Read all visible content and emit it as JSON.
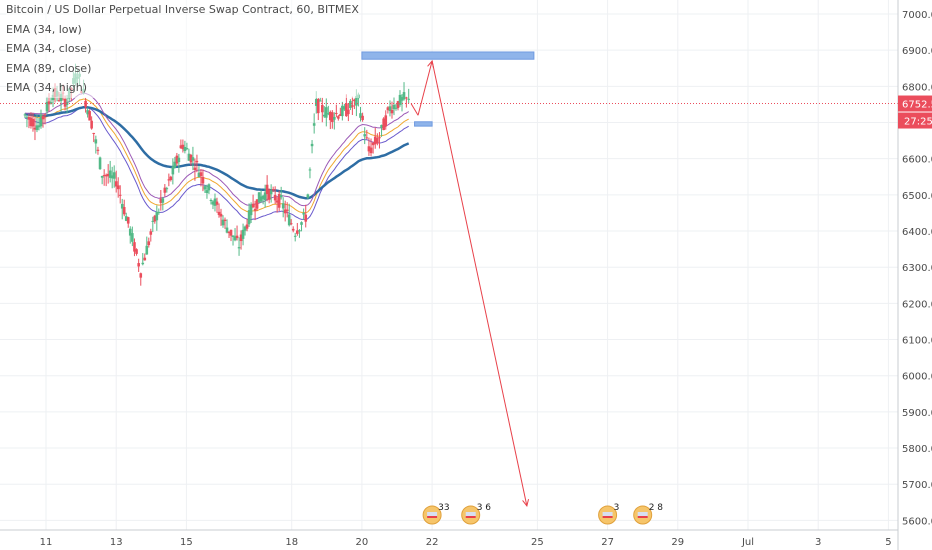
{
  "legend": {
    "title": "Bitcoin / US Dollar Perpetual Inverse Swap Contract, 60, BITMEX",
    "lines": [
      "EMA (34, low)",
      "EMA (34, close)",
      "EMA (89, close)",
      "EMA (34, high)"
    ]
  },
  "colors": {
    "up": "#53b987",
    "down": "#eb4d5c",
    "ema_low": "#6a5acd",
    "ema_close": "#f0a830",
    "ema_89": "#2e6da4",
    "ema_high": "#9b59b6",
    "projection": "#e8414a",
    "zone": "#8fb4ea",
    "price_line": "#eb4d5c"
  },
  "chart_data": {
    "type": "candlestick",
    "y_axis": {
      "min": 5570,
      "max": 7040,
      "ticks": [
        7000.0,
        6900.0,
        6800.0,
        6700.0,
        6600.0,
        6500.0,
        6400.0,
        6300.0,
        6200.0,
        6100.0,
        6000.0,
        5900.0,
        5800.0,
        5700.0,
        5600.0
      ],
      "tick_labels": [
        "7000.0",
        "6900.0",
        "6800.0",
        "6700.0",
        "6600.0",
        "6500.0",
        "6400.0",
        "6300.0",
        "6200.0",
        "6100.0",
        "6000.0",
        "5900.0",
        "5800.0",
        "5700.0",
        "5600.0"
      ]
    },
    "x_axis": {
      "unit": "day",
      "min": 10.3,
      "max": 35.3,
      "ticks": [
        {
          "day": 11,
          "label": "11"
        },
        {
          "day": 13,
          "label": "13"
        },
        {
          "day": 15,
          "label": "15"
        },
        {
          "day": 18,
          "label": "18"
        },
        {
          "day": 20,
          "label": "20"
        },
        {
          "day": 22,
          "label": "22"
        },
        {
          "day": 25,
          "label": "25"
        },
        {
          "day": 27,
          "label": "27"
        },
        {
          "day": 29,
          "label": "29"
        },
        {
          "day": 31,
          "label": "Jul"
        },
        {
          "day": 33,
          "label": "3"
        },
        {
          "day": 35,
          "label": "5"
        }
      ]
    },
    "candles_daily_anchors": [
      {
        "day": 10.4,
        "close": 6720
      },
      {
        "day": 10.8,
        "close": 6690
      },
      {
        "day": 11.2,
        "close": 6780
      },
      {
        "day": 11.6,
        "close": 6760
      },
      {
        "day": 11.9,
        "close": 6840
      },
      {
        "day": 12.3,
        "close": 6700
      },
      {
        "day": 12.6,
        "close": 6560
      },
      {
        "day": 13.0,
        "close": 6540
      },
      {
        "day": 13.4,
        "close": 6400
      },
      {
        "day": 13.7,
        "close": 6290
      },
      {
        "day": 14.1,
        "close": 6430
      },
      {
        "day": 14.5,
        "close": 6530
      },
      {
        "day": 14.9,
        "close": 6640
      },
      {
        "day": 15.3,
        "close": 6580
      },
      {
        "day": 15.7,
        "close": 6500
      },
      {
        "day": 16.1,
        "close": 6420
      },
      {
        "day": 16.5,
        "close": 6360
      },
      {
        "day": 16.9,
        "close": 6470
      },
      {
        "day": 17.3,
        "close": 6510
      },
      {
        "day": 17.7,
        "close": 6480
      },
      {
        "day": 18.1,
        "close": 6400
      },
      {
        "day": 18.4,
        "close": 6440
      },
      {
        "day": 18.7,
        "close": 6750
      },
      {
        "day": 19.1,
        "close": 6720
      },
      {
        "day": 19.5,
        "close": 6730
      },
      {
        "day": 19.9,
        "close": 6760
      },
      {
        "day": 20.2,
        "close": 6620
      },
      {
        "day": 20.5,
        "close": 6660
      },
      {
        "day": 20.8,
        "close": 6740
      },
      {
        "day": 21.2,
        "close": 6765
      },
      {
        "day": 21.4,
        "close": 6752.5
      }
    ],
    "series": [
      {
        "name": "EMA (34, low)"
      },
      {
        "name": "EMA (34, close)"
      },
      {
        "name": "EMA (89, close)"
      },
      {
        "name": "EMA (34, high)"
      }
    ],
    "last_price": "6752.5",
    "countdown": "27:25",
    "resistance_zone": {
      "day_start": 20.0,
      "day_end": 24.9,
      "price_low": 6875,
      "price_high": 6895
    },
    "support_zone": {
      "day_start": 21.5,
      "day_end": 22.0,
      "price_low": 6690,
      "price_high": 6702
    },
    "projection_path": [
      {
        "day": 21.4,
        "price": 6752.5
      },
      {
        "day": 21.6,
        "price": 6720
      },
      {
        "day": 22.0,
        "price": 6870
      },
      {
        "day": 24.7,
        "price": 5640
      }
    ],
    "event_badges": [
      {
        "day": 22.0,
        "count": "33"
      },
      {
        "day": 23.1,
        "count": "3  6"
      },
      {
        "day": 27.0,
        "count": "3"
      },
      {
        "day": 28.0,
        "count": "2  8"
      }
    ]
  }
}
